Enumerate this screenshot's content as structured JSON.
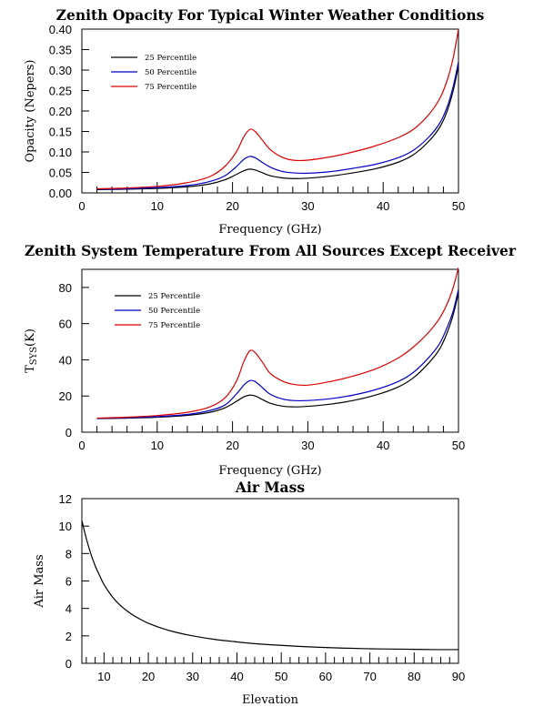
{
  "chart_data": [
    {
      "type": "line",
      "title": "Zenith Opacity For Typical Winter Weather Conditions",
      "xlabel": "Frequency (GHz)",
      "ylabel": "Opacity (Nepers)",
      "xlim": [
        0,
        50
      ],
      "ylim": [
        0,
        0.4
      ],
      "xticks": [
        0,
        10,
        20,
        30,
        40,
        50
      ],
      "yticks": [
        0.0,
        0.05,
        0.1,
        0.15,
        0.2,
        0.25,
        0.3,
        0.35,
        0.4
      ],
      "ytick_labels": [
        "0.00",
        "0.05",
        "0.10",
        "0.15",
        "0.20",
        "0.25",
        "0.30",
        "0.35",
        "0.40"
      ],
      "legend_position": "top-left",
      "grid": false,
      "x": [
        2,
        6,
        10,
        14,
        17,
        19,
        20.5,
        21.5,
        22.3,
        23,
        24,
        25,
        26.5,
        28,
        30,
        33,
        36,
        39,
        42,
        44,
        46,
        47.5,
        48.5,
        49.3,
        50
      ],
      "series": [
        {
          "name": "25 Percentile",
          "color": "#000000",
          "values": [
            0.008,
            0.009,
            0.011,
            0.015,
            0.022,
            0.032,
            0.045,
            0.054,
            0.058,
            0.056,
            0.049,
            0.042,
            0.037,
            0.035,
            0.036,
            0.041,
            0.049,
            0.059,
            0.075,
            0.093,
            0.125,
            0.16,
            0.2,
            0.25,
            0.31
          ]
        },
        {
          "name": "50 Percentile",
          "color": "#0000cc",
          "values": [
            0.009,
            0.01,
            0.013,
            0.018,
            0.028,
            0.042,
            0.064,
            0.082,
            0.089,
            0.086,
            0.074,
            0.063,
            0.053,
            0.049,
            0.048,
            0.052,
            0.06,
            0.07,
            0.086,
            0.104,
            0.135,
            0.17,
            0.21,
            0.26,
            0.32
          ]
        },
        {
          "name": "75 Percentile",
          "color": "#dd0000",
          "values": [
            0.01,
            0.012,
            0.016,
            0.025,
            0.04,
            0.065,
            0.1,
            0.137,
            0.155,
            0.15,
            0.128,
            0.106,
            0.088,
            0.08,
            0.08,
            0.088,
            0.1,
            0.115,
            0.135,
            0.155,
            0.19,
            0.23,
            0.275,
            0.33,
            0.4
          ]
        }
      ]
    },
    {
      "type": "line",
      "title": "Zenith System Temperature From All Sources Except Receiver",
      "xlabel": "Frequency (GHz)",
      "ylabel_main": "T",
      "ylabel_sub": "SYS",
      "ylabel_tail": "(K)",
      "xlim": [
        0,
        50
      ],
      "ylim": [
        0,
        90
      ],
      "xticks": [
        0,
        10,
        20,
        30,
        40,
        50
      ],
      "yticks": [
        0,
        20,
        40,
        60,
        80
      ],
      "legend_position": "top-left",
      "grid": false,
      "x": [
        2,
        6,
        10,
        14,
        17,
        19,
        20.5,
        21.5,
        22.3,
        23,
        24,
        25,
        26.5,
        28,
        30,
        33,
        36,
        39,
        42,
        44,
        46,
        47.5,
        48.5,
        49.3,
        50
      ],
      "series": [
        {
          "name": "25 Percentile",
          "color": "#000000",
          "values": [
            7.5,
            7.8,
            8.3,
            9.3,
            11,
            13.5,
            17,
            19.5,
            20.5,
            20,
            18,
            16,
            14.5,
            14,
            14.3,
            15.5,
            17.5,
            20.5,
            25,
            30,
            38,
            46,
            55,
            65,
            77
          ]
        },
        {
          "name": "50 Percentile",
          "color": "#0000cc",
          "values": [
            7.6,
            8,
            8.6,
            9.8,
            12,
            15,
            21,
            26,
            28.5,
            28,
            24.5,
            21,
            18.5,
            17.5,
            17.5,
            18.5,
            20.5,
            23.5,
            28,
            33,
            41,
            49,
            58,
            67,
            79
          ]
        },
        {
          "name": "75 Percentile",
          "color": "#dd0000",
          "values": [
            7.8,
            8.3,
            9.2,
            11,
            14,
            19,
            28,
            39,
            45,
            44,
            38.5,
            32.5,
            28.5,
            26.5,
            26,
            28,
            31,
            35,
            41,
            47,
            55,
            63,
            71,
            80,
            91
          ]
        }
      ]
    },
    {
      "type": "line",
      "title": "Air Mass",
      "xlabel": "Elevation",
      "ylabel": "Air Mass",
      "xlim": [
        5,
        90
      ],
      "ylim": [
        0,
        12
      ],
      "xticks": [
        10,
        20,
        30,
        40,
        50,
        60,
        70,
        80,
        90
      ],
      "yticks": [
        0,
        2,
        4,
        6,
        8,
        10,
        12
      ],
      "grid": false,
      "x": [
        5,
        6,
        7,
        8,
        9,
        10,
        12,
        14,
        16,
        18,
        20,
        23,
        26,
        30,
        35,
        40,
        45,
        50,
        55,
        60,
        65,
        70,
        75,
        80,
        85,
        90
      ],
      "series": [
        {
          "color": "#000000",
          "values": [
            10.4,
            9.1,
            8.0,
            7.1,
            6.4,
            5.74,
            4.8,
            4.13,
            3.63,
            3.24,
            2.92,
            2.56,
            2.28,
            2.0,
            1.74,
            1.56,
            1.41,
            1.31,
            1.22,
            1.15,
            1.1,
            1.06,
            1.04,
            1.02,
            1.0,
            1.0
          ]
        }
      ]
    }
  ]
}
